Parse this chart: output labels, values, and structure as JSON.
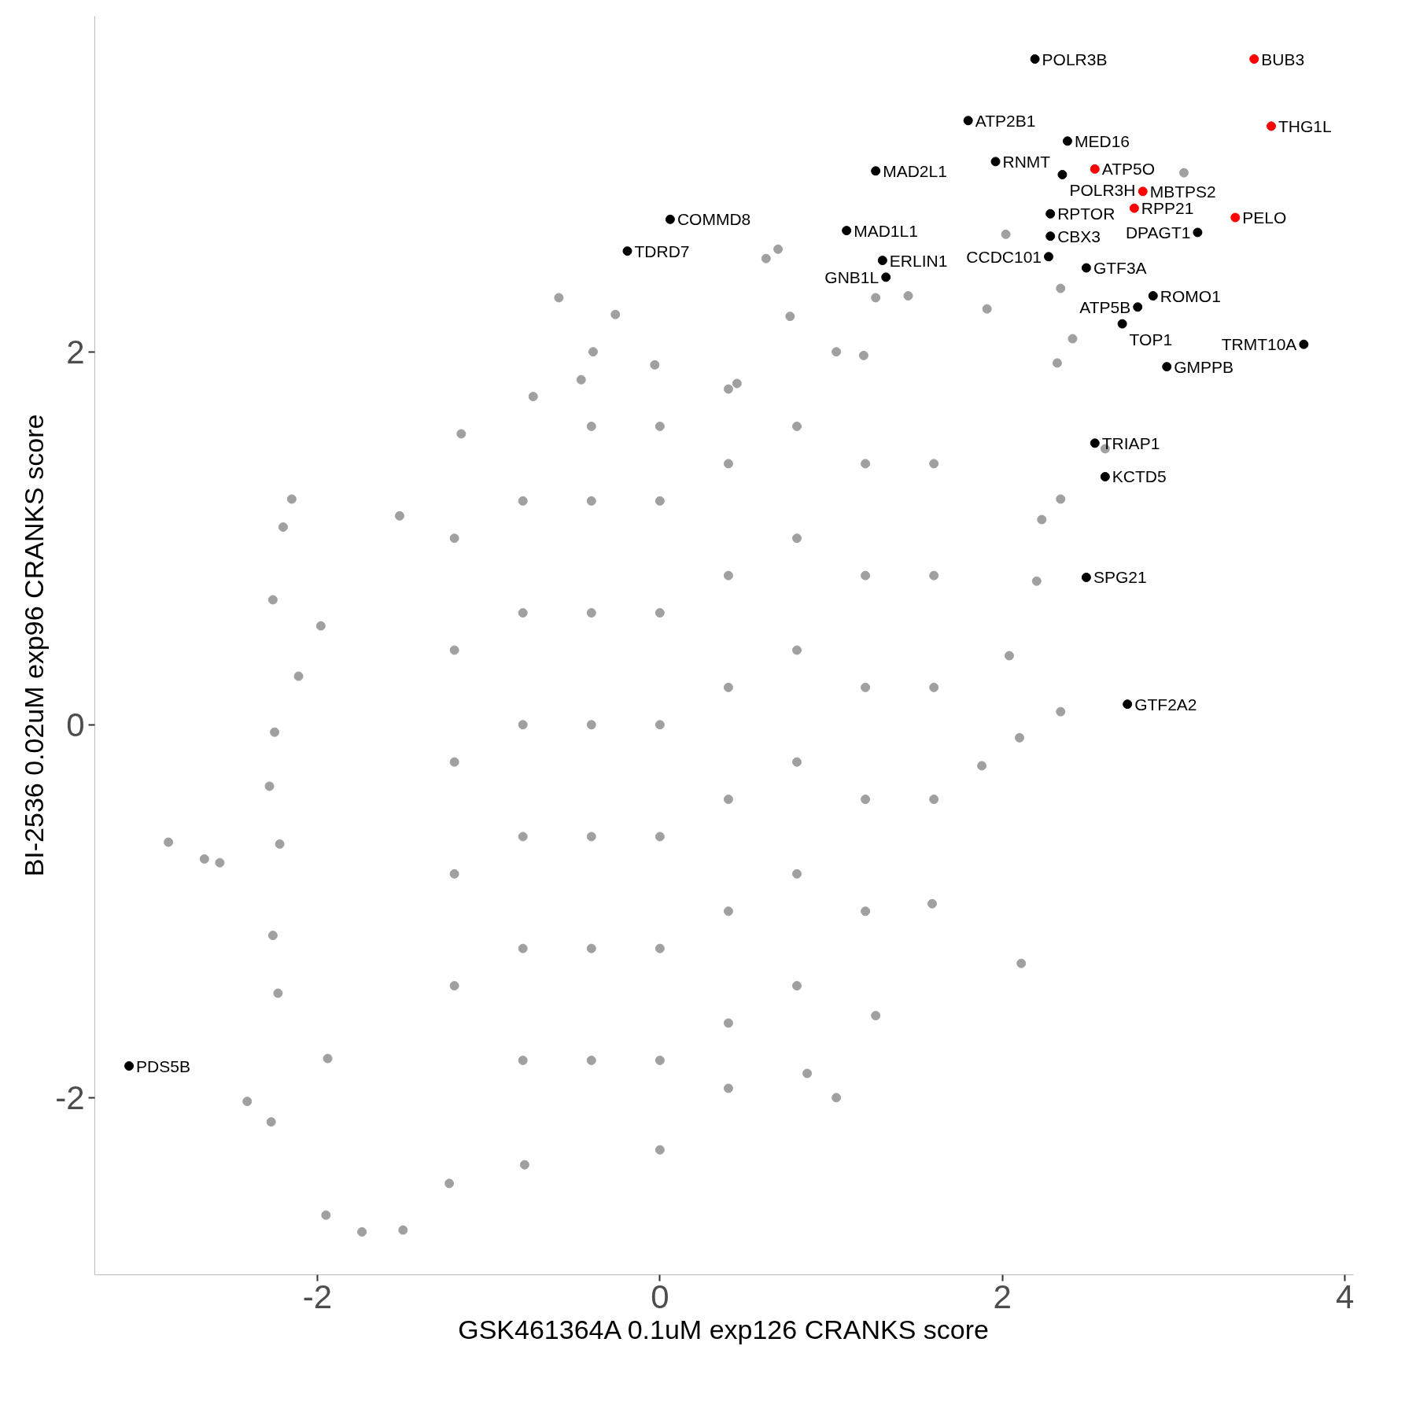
{
  "chart_data": {
    "type": "scatter",
    "xlabel": "GSK461364A 0.1uM exp126 CRANKS score",
    "ylabel": "BI-2536 0.02uM exp96 CRANKS score",
    "xlim": [
      -3.3,
      4.05
    ],
    "ylim": [
      -2.95,
      3.8
    ],
    "xticks": [
      -2,
      0,
      2,
      4
    ],
    "yticks": [
      -2,
      0,
      2
    ],
    "grid": false,
    "marker": "circle",
    "series": [
      {
        "color": "#a0a0a0",
        "x": [
          -2.87,
          -2.66,
          -2.57,
          -2.41,
          -2.27,
          -1.95,
          -1.74,
          -1.5,
          -1.23,
          -0.79,
          0.0,
          0.4,
          0.86,
          1.03,
          1.26,
          1.59,
          2.11,
          1.88,
          2.1,
          2.34,
          2.04,
          2.2,
          2.23,
          2.34,
          2.6,
          2.32,
          2.41,
          2.34,
          3.06,
          2.02,
          1.91,
          1.45,
          1.26,
          0.76,
          0.69,
          0.62,
          -0.26,
          -0.59,
          -0.39,
          -1.16,
          -2.15,
          -2.2,
          -2.26,
          -1.98,
          -2.11,
          -2.25,
          -2.28,
          -2.22,
          -2.26,
          -2.23,
          -1.94,
          -1.52,
          -0.74,
          -0.46,
          -0.03,
          0.45,
          1.03,
          1.19,
          -1.2,
          -1.2,
          -1.2,
          -1.2,
          -1.2,
          -0.8,
          -0.8,
          -0.8,
          -0.8,
          -0.8,
          -0.8,
          -0.4,
          -0.4,
          -0.4,
          -0.4,
          -0.4,
          -0.4,
          -0.4,
          0.0,
          0.0,
          0.0,
          0.0,
          0.0,
          0.0,
          0.0,
          0.4,
          0.4,
          0.4,
          0.4,
          0.4,
          0.4,
          0.4,
          0.8,
          0.8,
          0.8,
          0.8,
          0.8,
          0.8,
          1.2,
          1.2,
          1.2,
          1.2,
          1.2,
          1.6,
          1.6,
          1.6,
          1.6
        ],
        "values": [
          -0.63,
          -0.72,
          -0.74,
          -2.02,
          -2.13,
          -2.63,
          -2.72,
          -2.71,
          -2.46,
          -2.36,
          -2.28,
          -1.95,
          -1.87,
          -2.0,
          -1.56,
          -0.96,
          -1.28,
          -0.22,
          -0.07,
          0.07,
          0.37,
          0.77,
          1.1,
          1.21,
          1.48,
          1.94,
          2.07,
          2.34,
          2.96,
          2.63,
          2.23,
          2.3,
          2.29,
          2.19,
          2.55,
          2.5,
          2.2,
          2.29,
          2.0,
          1.56,
          1.21,
          1.06,
          0.67,
          0.53,
          0.26,
          -0.04,
          -0.33,
          -0.64,
          -1.13,
          -1.44,
          -1.79,
          1.12,
          1.76,
          1.85,
          1.93,
          1.83,
          2.0,
          1.98,
          -1.4,
          -0.8,
          -0.2,
          0.4,
          1.0,
          -1.8,
          -1.2,
          -0.6,
          0.0,
          0.6,
          1.2,
          -1.8,
          -1.2,
          -0.6,
          0.0,
          0.6,
          1.2,
          1.6,
          -1.8,
          -1.2,
          -0.6,
          0.0,
          0.6,
          1.2,
          1.6,
          -1.6,
          -1.0,
          -0.4,
          0.2,
          0.8,
          1.4,
          1.8,
          -1.4,
          -0.8,
          -0.2,
          0.4,
          1.0,
          1.6,
          -1.0,
          -0.4,
          0.2,
          0.8,
          1.4,
          -0.4,
          0.2,
          0.8,
          1.4
        ]
      },
      {
        "color": "#000000",
        "x": [
          2.19,
          1.8,
          2.38,
          2.35,
          1.96,
          1.26,
          0.06,
          1.09,
          -0.19,
          1.3,
          1.32,
          2.28,
          2.28,
          2.27,
          2.49,
          3.14,
          2.88,
          2.79,
          2.7,
          3.76,
          2.96,
          2.54,
          2.6,
          2.49,
          2.73,
          -3.1
        ],
        "values": [
          3.57,
          3.24,
          3.13,
          2.95,
          3.02,
          2.97,
          2.71,
          2.65,
          2.54,
          2.49,
          2.4,
          2.74,
          2.62,
          2.51,
          2.45,
          2.64,
          2.3,
          2.24,
          2.15,
          2.04,
          1.92,
          1.51,
          1.33,
          0.79,
          0.11,
          -1.83
        ]
      },
      {
        "color": "#ff0000",
        "x": [
          3.47,
          3.57,
          2.54,
          2.82,
          2.77,
          3.36
        ],
        "values": [
          3.57,
          3.21,
          2.98,
          2.86,
          2.77,
          2.72
        ]
      }
    ],
    "annotations": [
      {
        "text": "POLR3B",
        "x": 2.19,
        "y": 3.57
      },
      {
        "text": "BUB3",
        "x": 3.47,
        "y": 3.57
      },
      {
        "text": "MED16",
        "x": 2.38,
        "y": 3.13
      },
      {
        "text": "ATP2B1",
        "x": 1.8,
        "y": 3.24
      },
      {
        "text": "THG1L",
        "x": 3.57,
        "y": 3.21
      },
      {
        "text": "POLR3H",
        "x": 2.35,
        "y": 2.95
      },
      {
        "text": "ATP5O",
        "x": 2.54,
        "y": 2.98
      },
      {
        "text": "MAD2L1",
        "x": 1.26,
        "y": 2.97
      },
      {
        "text": "RNMT",
        "x": 1.96,
        "y": 3.02
      },
      {
        "text": "MBTPS2",
        "x": 2.82,
        "y": 2.86
      },
      {
        "text": "PELO",
        "x": 3.36,
        "y": 2.72
      },
      {
        "text": "COMMD8",
        "x": 0.06,
        "y": 2.71
      },
      {
        "text": "MAD1L1",
        "x": 1.09,
        "y": 2.65
      },
      {
        "text": "RPTOR",
        "x": 2.28,
        "y": 2.74
      },
      {
        "text": "DPAGT1",
        "x": 3.14,
        "y": 2.64
      },
      {
        "text": "RPP21",
        "x": 2.77,
        "y": 2.77
      },
      {
        "text": "ERLIN1",
        "x": 1.3,
        "y": 2.49
      },
      {
        "text": "CBX3",
        "x": 2.28,
        "y": 2.62
      },
      {
        "text": "ROMO1",
        "x": 2.88,
        "y": 2.3
      },
      {
        "text": "TDRD7",
        "x": -0.19,
        "y": 2.54
      },
      {
        "text": "GNB1L",
        "x": 1.32,
        "y": 2.4
      },
      {
        "text": "GTF3A",
        "x": 2.49,
        "y": 2.45
      },
      {
        "text": "TRMT10A",
        "x": 3.76,
        "y": 2.04
      },
      {
        "text": "CCDC101",
        "x": 2.27,
        "y": 2.51
      },
      {
        "text": "ATP5B",
        "x": 2.79,
        "y": 2.24
      },
      {
        "text": "TOP1",
        "x": 2.7,
        "y": 2.15
      },
      {
        "text": "GMPPB",
        "x": 2.96,
        "y": 1.92
      },
      {
        "text": "TRIAP1",
        "x": 2.54,
        "y": 1.51
      },
      {
        "text": "KCTD5",
        "x": 2.6,
        "y": 1.33
      },
      {
        "text": "SPG21",
        "x": 2.49,
        "y": 0.79
      },
      {
        "text": "GTF2A2",
        "x": 2.73,
        "y": 0.11
      },
      {
        "text": "PDS5B",
        "x": -3.1,
        "y": -1.83
      }
    ]
  }
}
